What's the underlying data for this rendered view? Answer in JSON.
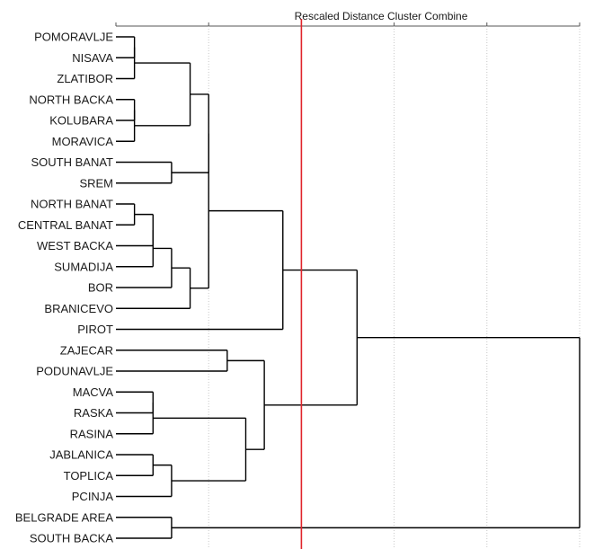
{
  "chart_data": {
    "type": "dendrogram",
    "title": "Rescaled Distance Cluster Combine",
    "x_range": [
      0,
      25
    ],
    "ticks": [
      0,
      5,
      10,
      15,
      20,
      25
    ],
    "cut_distance": 10,
    "leaves": [
      "POMORAVLJE",
      "NISAVA",
      "ZLATIBOR",
      "NORTH BACKA",
      "KOLUBARA",
      "MORAVICA",
      "SOUTH BANAT",
      "SREM",
      "NORTH BANAT",
      "CENTRAL BANAT",
      "WEST BACKA",
      "SUMADIJA",
      "BOR",
      "BRANICEVO",
      "PIROT",
      "ZAJECAR",
      "PODUNAVLJE",
      "MACVA",
      "RASKA",
      "RASINA",
      "JABLANICA",
      "TOPLICA",
      "PCINJA",
      "BELGRADE AREA",
      "SOUTH BACKA"
    ],
    "merges": [
      {
        "a": "L0",
        "b": "L1",
        "h": 1
      },
      {
        "a": "M0",
        "b": "L2",
        "h": 1
      },
      {
        "a": "L3",
        "b": "L4",
        "h": 1
      },
      {
        "a": "M2",
        "b": "L5",
        "h": 1
      },
      {
        "a": "M1",
        "b": "M3",
        "h": 4
      },
      {
        "a": "L8",
        "b": "L9",
        "h": 1
      },
      {
        "a": "M5",
        "b": "L10",
        "h": 2
      },
      {
        "a": "M6",
        "b": "L11",
        "h": 2
      },
      {
        "a": "M7",
        "b": "L12",
        "h": 3
      },
      {
        "a": "M8",
        "b": "L13",
        "h": 4
      },
      {
        "a": "L6",
        "b": "L7",
        "h": 3
      },
      {
        "a": "M4",
        "b": "M10",
        "h": 5
      },
      {
        "a": "M11",
        "b": "M9",
        "h": 5
      },
      {
        "a": "M12",
        "b": "L14",
        "h": 9
      },
      {
        "a": "L15",
        "b": "L16",
        "h": 6
      },
      {
        "a": "L17",
        "b": "L18",
        "h": 2
      },
      {
        "a": "M15",
        "b": "L19",
        "h": 2
      },
      {
        "a": "L20",
        "b": "L21",
        "h": 2
      },
      {
        "a": "M17",
        "b": "L22",
        "h": 3
      },
      {
        "a": "M16",
        "b": "M18",
        "h": 7
      },
      {
        "a": "M14",
        "b": "M19",
        "h": 8
      },
      {
        "a": "M13",
        "b": "M20",
        "h": 13
      },
      {
        "a": "L23",
        "b": "L24",
        "h": 3
      },
      {
        "a": "M21",
        "b": "M22",
        "h": 25
      }
    ]
  }
}
